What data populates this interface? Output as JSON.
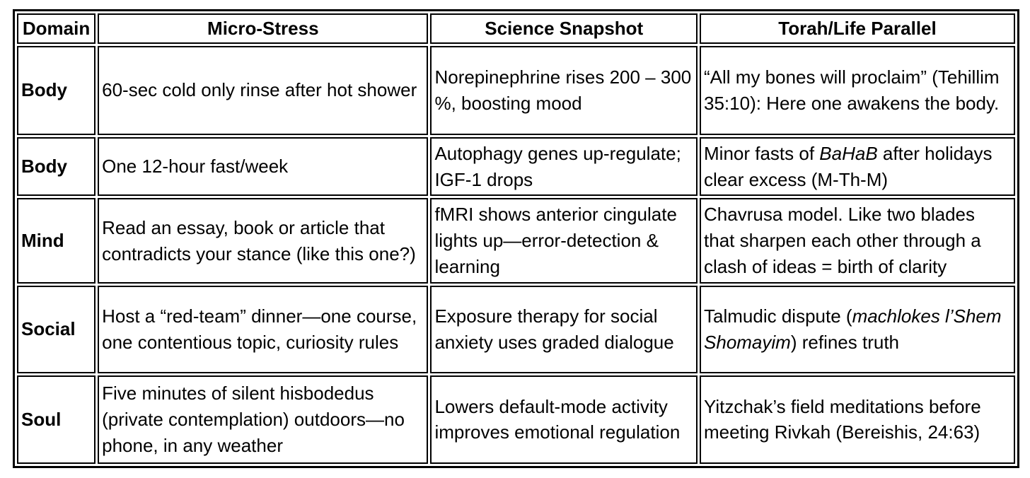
{
  "table": {
    "headers": [
      "Domain",
      "Micro-Stress",
      "Science Snapshot",
      "Torah/Life Parallel"
    ],
    "rows": [
      {
        "domain": "Body",
        "micro_stress": [
          {
            "text": "60-sec cold only rinse after hot shower",
            "italic": false
          }
        ],
        "science": [
          {
            "text": "Norepinephrine rises 200 – 300 %, boosting mood",
            "italic": false
          }
        ],
        "torah": [
          {
            "text": "“All my bones will proclaim” (Tehillim 35:10): Here one awakens the body.",
            "italic": false
          }
        ]
      },
      {
        "domain": "Body",
        "micro_stress": [
          {
            "text": "One 12-hour fast/week",
            "italic": false
          }
        ],
        "science": [
          {
            "text": "Autophagy genes up-regulate; IGF-1 drops",
            "italic": false
          }
        ],
        "torah": [
          {
            "text": "Minor fasts of ",
            "italic": false
          },
          {
            "text": "BaHaB",
            "italic": true
          },
          {
            "text": " after holidays clear excess (M-Th-M)",
            "italic": false
          }
        ]
      },
      {
        "domain": "Mind",
        "micro_stress": [
          {
            "text": "Read an essay, book or article that contradicts your stance (like this one?)",
            "italic": false
          }
        ],
        "science": [
          {
            "text": "fMRI shows anterior cingulate lights up—error-detection & learning",
            "italic": false
          }
        ],
        "torah": [
          {
            "text": "Chavrusa model. Like two blades that sharpen each other through a clash of ideas = birth of clarity",
            "italic": false
          }
        ]
      },
      {
        "domain": "Social",
        "micro_stress": [
          {
            "text": "Host a “red-team” dinner—one course, one contentious topic, curiosity rules",
            "italic": false
          }
        ],
        "science": [
          {
            "text": "Exposure therapy for social anxiety uses graded dialogue",
            "italic": false
          }
        ],
        "torah": [
          {
            "text": "Talmudic dispute (",
            "italic": false
          },
          {
            "text": "machlokes l’Shem Shomayim",
            "italic": true
          },
          {
            "text": ") refines truth",
            "italic": false
          }
        ]
      },
      {
        "domain": "Soul",
        "micro_stress": [
          {
            "text": "Five minutes of silent hisbodedus (private contemplation) outdoors—no phone, in any weather",
            "italic": false
          }
        ],
        "science": [
          {
            "text": "Lowers default-mode activity improves emotional regulation",
            "italic": false
          }
        ],
        "torah": [
          {
            "text": "Yitzchak’s field meditations before meeting Rivkah (Bereishis, 24:63)",
            "italic": false
          }
        ]
      }
    ],
    "colors": {
      "border": "#000000",
      "background": "#ffffff",
      "text": "#000000"
    }
  }
}
